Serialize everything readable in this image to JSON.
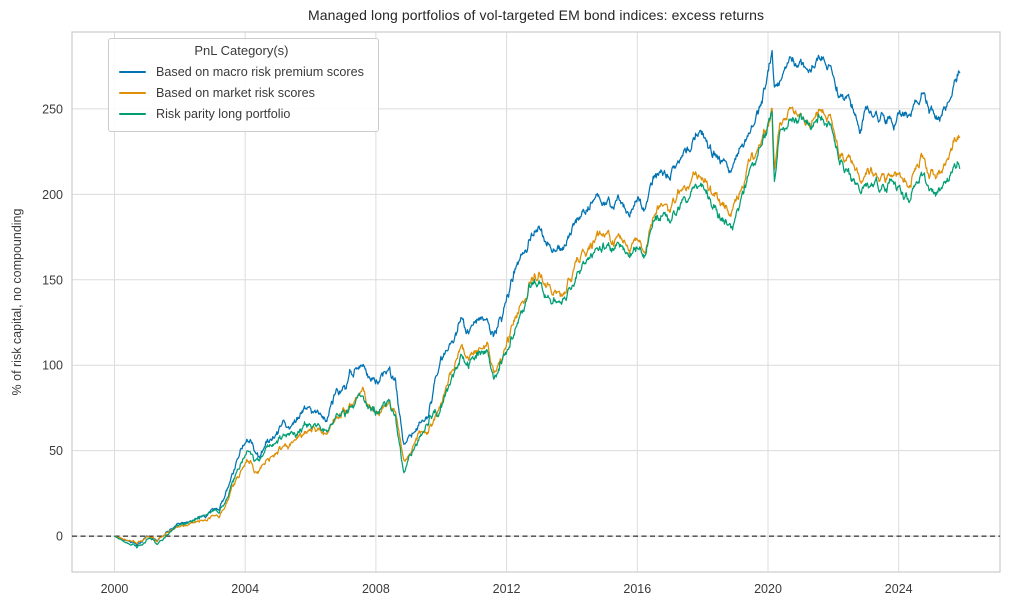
{
  "figure_title": "Managed long portfolios of vol-targeted EM bond indices: excess returns",
  "chart_data": {
    "type": "line",
    "title": "Managed long portfolios of vol-targeted EM bond indices: excess returns",
    "xlabel": "",
    "ylabel": "% of risk capital, no compounding",
    "xlim": [
      1998.7,
      2027.1
    ],
    "ylim": [
      -21,
      295
    ],
    "xticks": [
      2000,
      2004,
      2008,
      2012,
      2016,
      2020,
      2024
    ],
    "yticks": [
      0,
      50,
      100,
      150,
      200,
      250
    ],
    "grid": true,
    "grid_color": "#dcdcdc",
    "spine_color": "#cccccc",
    "zero_line": {
      "value": 0,
      "style": "dashed",
      "color": "#000000"
    },
    "legend": {
      "title": "PnL Category(s)",
      "position": "upper-left"
    },
    "x": [
      2000.0,
      2000.3,
      2000.7,
      2001.0,
      2001.3,
      2001.8,
      2002.3,
      2002.6,
      2003.0,
      2003.2,
      2003.7,
      2004.0,
      2004.15,
      2004.4,
      2004.7,
      2005.0,
      2005.5,
      2006.0,
      2006.4,
      2006.8,
      2007.2,
      2007.5,
      2007.8,
      2008.0,
      2008.3,
      2008.6,
      2008.85,
      2009.0,
      2009.3,
      2009.6,
      2010.0,
      2010.3,
      2010.6,
      2010.8,
      2011.0,
      2011.4,
      2011.6,
      2011.9,
      2012.2,
      2012.6,
      2013.0,
      2013.3,
      2013.5,
      2013.8,
      2014.2,
      2014.6,
      2014.9,
      2015.2,
      2015.5,
      2015.8,
      2016.0,
      2016.2,
      2016.5,
      2016.8,
      2017.0,
      2017.4,
      2017.8,
      2018.0,
      2018.3,
      2018.6,
      2018.9,
      2019.1,
      2019.4,
      2019.7,
      2020.0,
      2020.12,
      2020.2,
      2020.35,
      2020.5,
      2020.7,
      2021.0,
      2021.3,
      2021.6,
      2021.9,
      2022.2,
      2022.5,
      2022.8,
      2023.0,
      2023.2,
      2023.5,
      2023.85,
      2024.0,
      2024.3,
      2024.7,
      2024.95,
      2025.2,
      2025.5,
      2025.7,
      2025.87
    ],
    "series": [
      {
        "name": "Based on macro risk premium scores",
        "color": "#0173b2",
        "values": [
          0,
          -2,
          -4.5,
          -1,
          -3,
          6,
          9,
          12,
          17,
          16,
          38,
          54,
          56,
          46,
          55,
          62,
          66,
          75,
          70,
          85,
          94,
          98,
          90,
          91,
          94,
          88,
          52,
          56,
          62,
          74,
          101,
          110,
          127,
          120,
          126,
          130,
          120,
          131,
          155,
          170,
          183,
          172,
          165,
          170,
          188,
          196,
          199,
          193,
          197,
          191,
          195,
          190,
          209,
          213,
          210,
          224,
          234,
          232,
          224,
          221,
          216,
          222,
          234,
          248,
          270,
          281,
          255,
          266,
          270,
          274,
          276,
          270,
          277,
          272,
          258,
          250,
          240,
          251,
          246,
          248,
          239,
          248,
          246,
          261,
          247,
          242,
          252,
          264,
          272
        ]
      },
      {
        "name": "Based on market risk scores",
        "color": "#de8f05",
        "values": [
          0,
          -1.5,
          -4,
          -1,
          -3.5,
          5,
          8,
          10,
          13,
          12,
          30,
          42,
          45,
          36,
          45,
          51,
          56,
          63,
          60,
          70,
          77,
          80,
          74,
          72,
          76,
          72,
          42,
          46,
          56,
          64,
          78,
          92,
          112,
          102,
          108,
          113,
          102,
          108,
          126,
          142,
          156,
          146,
          140,
          144,
          160,
          172,
          177,
          172,
          175,
          169,
          172,
          167,
          186,
          195,
          192,
          202,
          211,
          209,
          200,
          194,
          189,
          196,
          214,
          228,
          240,
          251,
          210,
          240,
          235,
          242,
          248,
          238,
          248,
          242,
          224,
          216,
          212,
          209,
          214,
          212,
          210,
          212,
          204,
          226,
          209,
          209,
          219,
          228,
          233
        ]
      },
      {
        "name": "Risk parity long portfolio",
        "color": "#029e73",
        "values": [
          0,
          -3,
          -6.5,
          -2,
          -4.5,
          5,
          8.5,
          11,
          16,
          14,
          33,
          48,
          50,
          43,
          50,
          57,
          60,
          65,
          62,
          70,
          76,
          78,
          75,
          74,
          77,
          71,
          36,
          44,
          54,
          66,
          77,
          90,
          107,
          99,
          104,
          109,
          98,
          105,
          122,
          138,
          153,
          141,
          133,
          139,
          156,
          168,
          173,
          168,
          172,
          165,
          167,
          162,
          180,
          189,
          185,
          196,
          204,
          202,
          194,
          189,
          182,
          190,
          209,
          224,
          238,
          250,
          205,
          236,
          231,
          238,
          245,
          234,
          245,
          238,
          221,
          212,
          208,
          204,
          209,
          207,
          204,
          204,
          196,
          213,
          199,
          201,
          209,
          214,
          219
        ]
      }
    ]
  }
}
